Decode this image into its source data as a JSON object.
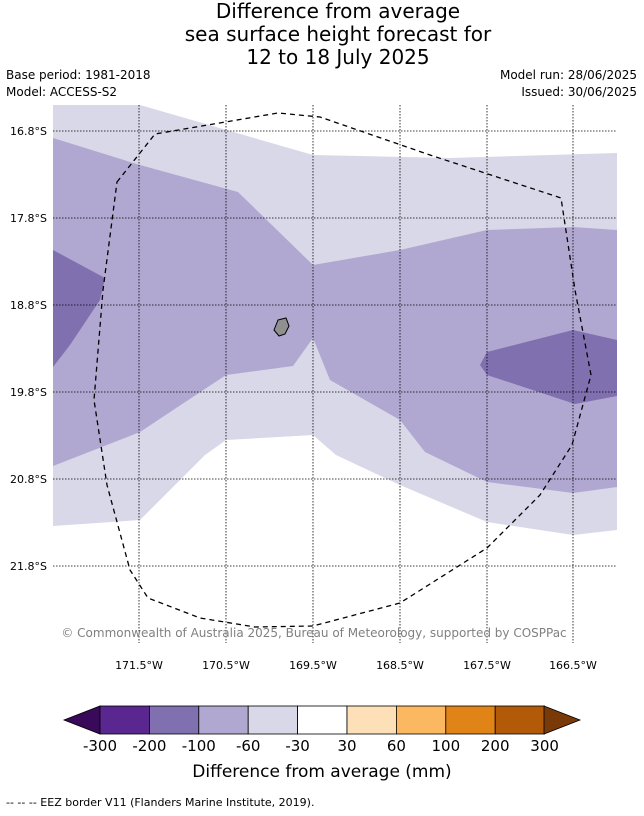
{
  "title": {
    "line1": "Difference from average",
    "line2": "sea surface height forecast for",
    "line3": "12 to 18 July 2025"
  },
  "meta": {
    "base_period": "Base period: 1981-2018",
    "model": "Model: ACCESS-S2",
    "model_run": "Model run: 28/06/2025",
    "issued": "Issued: 30/06/2025"
  },
  "map": {
    "lat_labels": [
      "16.8°S",
      "17.8°S",
      "18.8°S",
      "19.8°S",
      "20.8°S",
      "21.8°S"
    ],
    "lon_labels": [
      "171.5°W",
      "170.5°W",
      "169.5°W",
      "168.5°W",
      "167.5°W",
      "166.5°W"
    ],
    "copyright": "© Commonwealth of Australia 2025, Bureau of Meteorology, supported by COSPPac",
    "region_colors": {
      "-30_to_-60": "#d8d8e8",
      "-60_to_-100": "#b0a8d0",
      "-100_to_-200": "#8070b0"
    },
    "land_color": "#909090"
  },
  "colorbar": {
    "title": "Difference from average (mm)",
    "tick_labels": [
      "-300",
      "-200",
      "-100",
      "-60",
      "-30",
      "30",
      "60",
      "100",
      "200",
      "300"
    ],
    "colors": [
      "#3a0a5a",
      "#5a2690",
      "#8070b0",
      "#b0a8d0",
      "#d8d8e8",
      "#ffffff",
      "#fde0b8",
      "#fbb860",
      "#e08418",
      "#b25a08",
      "#7a3a08"
    ]
  },
  "footnote": "--  --  -- EEZ border V11 (Flanders Marine Institute, 2019)."
}
